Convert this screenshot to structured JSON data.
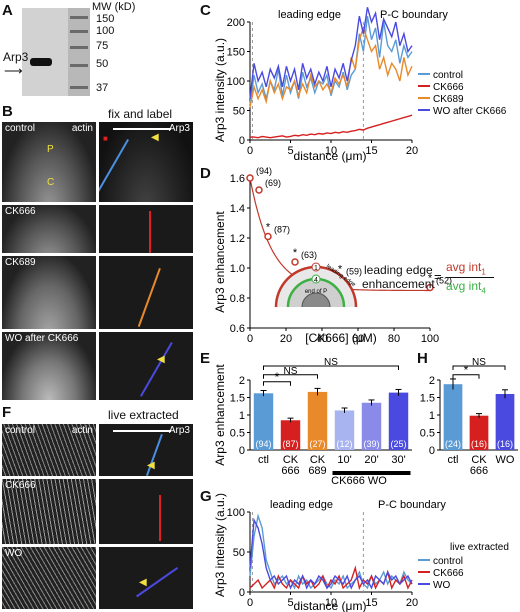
{
  "panel_letters": {
    "A": "A",
    "B": "B",
    "C": "C",
    "D": "D",
    "E": "E",
    "F": "F",
    "G": "G",
    "H": "H"
  },
  "panelA": {
    "mw_label": "MW (kD)",
    "mw_markers": [
      "150",
      "100",
      "75",
      "50",
      "37"
    ],
    "band_label": "Arp3"
  },
  "panelB": {
    "header": "fix and label",
    "row_labels": [
      "control",
      "CK666",
      "CK689",
      "WO after CK666"
    ],
    "actin_label": "actin",
    "arp3_label": "Arp3",
    "lamella_P": "P",
    "lamella_C": "C"
  },
  "panelF": {
    "header": "live extracted",
    "row_labels": [
      "control",
      "CK666",
      "WO"
    ],
    "actin_label": "actin",
    "arp3_label": "Arp3"
  },
  "panelD_inset": {
    "leading_edge": "leading edge",
    "end_of_P": "end of P",
    "eq_left_1": "leading edge",
    "eq_left_2": "enhancement",
    "eq_eq": "=",
    "eq_num": "avg int",
    "eq_num_sub": "1",
    "eq_den": "avg int",
    "eq_den_sub": "4",
    "ring1": "1",
    "ring4": "4"
  },
  "colors": {
    "control": "#5b9bd5",
    "CK666": "#d62020",
    "CK689": "#e8892a",
    "WO": "#4a4ae0",
    "ring1": "#c0392b",
    "ring4": "#3cb043"
  },
  "chart_data": [
    {
      "id": "C",
      "type": "line",
      "xlabel": "distance (μm)",
      "ylabel": "Arp3 intensity (a.u.)",
      "xlim": [
        0,
        20
      ],
      "ylim": [
        0,
        200
      ],
      "xticks": [
        0,
        5,
        10,
        15,
        20
      ],
      "yticks": [
        0,
        50,
        100,
        150,
        200
      ],
      "annotations": [
        "leading edge",
        "P-C boundary"
      ],
      "x": [
        0,
        0.5,
        1,
        1.5,
        2,
        2.5,
        3,
        3.5,
        4,
        4.5,
        5,
        5.5,
        6,
        6.5,
        7,
        7.5,
        8,
        8.5,
        9,
        9.5,
        10,
        10.5,
        11,
        11.5,
        12,
        12.5,
        13,
        13.5,
        14,
        14.5,
        15,
        15.5,
        16,
        16.5,
        17,
        17.5,
        18,
        18.5,
        19,
        19.5,
        20
      ],
      "series": [
        {
          "name": "control",
          "values": [
            60,
            110,
            80,
            95,
            70,
            100,
            85,
            120,
            75,
            110,
            80,
            100,
            70,
            115,
            90,
            105,
            80,
            100,
            95,
            110,
            75,
            100,
            90,
            115,
            85,
            110,
            120,
            180,
            150,
            210,
            170,
            190,
            140,
            200,
            160,
            150,
            170,
            130,
            160,
            140,
            150
          ]
        },
        {
          "name": "CK666",
          "values": [
            5,
            5,
            4,
            6,
            5,
            4,
            5,
            6,
            7,
            5,
            6,
            8,
            7,
            9,
            8,
            10,
            9,
            11,
            10,
            12,
            11,
            13,
            12,
            14,
            13,
            15,
            16,
            18,
            17,
            20,
            22,
            24,
            26,
            28,
            30,
            32,
            34,
            36,
            38,
            40,
            42
          ]
        },
        {
          "name": "CK689",
          "values": [
            55,
            90,
            70,
            85,
            65,
            100,
            80,
            95,
            70,
            90,
            85,
            100,
            75,
            95,
            80,
            110,
            90,
            100,
            85,
            95,
            80,
            105,
            95,
            110,
            90,
            140,
            120,
            170,
            190,
            170,
            150,
            160,
            120,
            140,
            110,
            130,
            120,
            100,
            140,
            110,
            125
          ]
        },
        {
          "name": "WO after CK666",
          "values": [
            70,
            130,
            100,
            115,
            90,
            120,
            105,
            125,
            90,
            125,
            100,
            120,
            85,
            130,
            105,
            120,
            95,
            115,
            100,
            125,
            90,
            120,
            105,
            130,
            100,
            135,
            160,
            210,
            180,
            225,
            200,
            215,
            170,
            205,
            190,
            175,
            200,
            160,
            180,
            150,
            160
          ]
        }
      ]
    },
    {
      "id": "D",
      "type": "scatter",
      "xlabel": "[CK666] (μM)",
      "ylabel": "Arp3 enhancement",
      "xlim": [
        0,
        100
      ],
      "ylim": [
        0.6,
        1.6
      ],
      "xticks": [
        0,
        20,
        40,
        60,
        80,
        100
      ],
      "yticks": [
        0.6,
        0.8,
        1.0,
        1.2,
        1.4,
        1.6
      ],
      "x": [
        0,
        5,
        10,
        25,
        50,
        100
      ],
      "values": [
        1.6,
        1.52,
        1.21,
        1.04,
        0.93,
        0.87
      ],
      "n_labels": [
        "(94)",
        "(69)",
        "(87)",
        "(63)",
        "(59)",
        "(52)"
      ],
      "significance": [
        "",
        "",
        "*",
        "*",
        "*",
        "*"
      ]
    },
    {
      "id": "E",
      "type": "bar",
      "ylabel": "Arp3 enhancement",
      "ylim": [
        0,
        2
      ],
      "yticks": [
        0,
        0.5,
        1,
        1.5,
        2
      ],
      "categories": [
        "ctl",
        "CK 666",
        "CK 689",
        "10'",
        "20'",
        "30'"
      ],
      "values": [
        1.62,
        0.85,
        1.66,
        1.13,
        1.35,
        1.64
      ],
      "errors": [
        0.08,
        0.06,
        0.1,
        0.07,
        0.08,
        0.09
      ],
      "n_labels": [
        "(94)",
        "(87)",
        "(27)",
        "(12)",
        "(39)",
        "(25)"
      ],
      "group_label": "CK666 WO",
      "significance": [
        "*",
        "NS",
        "NS"
      ]
    },
    {
      "id": "H",
      "type": "bar",
      "ylabel": "",
      "ylim": [
        0,
        2
      ],
      "yticks": [
        0,
        0.5,
        1,
        1.5,
        2
      ],
      "categories": [
        "ctl",
        "CK 666",
        "WO"
      ],
      "values": [
        1.88,
        0.98,
        1.6
      ],
      "errors": [
        0.15,
        0.06,
        0.12
      ],
      "n_labels": [
        "(24)",
        "(16)",
        "(16)"
      ],
      "significance": [
        "*",
        "NS"
      ]
    },
    {
      "id": "G",
      "type": "line",
      "xlabel": "distance (μm)",
      "ylabel": "Arp3 intensity (a.u.)",
      "xlim": [
        0,
        20
      ],
      "ylim": [
        0,
        100
      ],
      "xticks": [
        0,
        5,
        10,
        15,
        20
      ],
      "yticks": [
        0,
        50,
        100
      ],
      "annotations": [
        "leading edge",
        "P-C boundary"
      ],
      "legend_title": "live extracted",
      "x": [
        0,
        0.5,
        1,
        1.5,
        2,
        2.5,
        3,
        3.5,
        4,
        4.5,
        5,
        5.5,
        6,
        6.5,
        7,
        7.5,
        8,
        8.5,
        9,
        9.5,
        10,
        10.5,
        11,
        11.5,
        12,
        12.5,
        13,
        13.5,
        14,
        14.5,
        15,
        15.5,
        16,
        16.5,
        17,
        17.5,
        18,
        18.5,
        19,
        19.5,
        20
      ],
      "series": [
        {
          "name": "control",
          "values": [
            20,
            70,
            95,
            80,
            40,
            25,
            10,
            15,
            20,
            10,
            15,
            5,
            20,
            10,
            15,
            5,
            10,
            15,
            20,
            10,
            5,
            15,
            10,
            20,
            5,
            10,
            15,
            25,
            10,
            5,
            20,
            10,
            15,
            25,
            10,
            20,
            15,
            10,
            25,
            15,
            10
          ]
        },
        {
          "name": "CK666",
          "values": [
            5,
            10,
            15,
            5,
            10,
            15,
            5,
            20,
            10,
            5,
            15,
            10,
            5,
            20,
            10,
            15,
            5,
            10,
            20,
            5,
            15,
            10,
            20,
            5,
            10,
            15,
            30,
            5,
            15,
            10,
            20,
            5,
            15,
            10,
            25,
            5,
            15,
            10,
            20,
            5,
            15
          ]
        },
        {
          "name": "WO",
          "values": [
            30,
            90,
            80,
            60,
            30,
            15,
            20,
            10,
            15,
            20,
            5,
            15,
            10,
            20,
            5,
            15,
            10,
            20,
            15,
            5,
            10,
            20,
            15,
            10,
            20,
            5,
            15,
            20,
            10,
            15,
            5,
            20,
            15,
            10,
            25,
            15,
            20,
            10,
            15,
            20,
            10
          ]
        }
      ]
    }
  ]
}
